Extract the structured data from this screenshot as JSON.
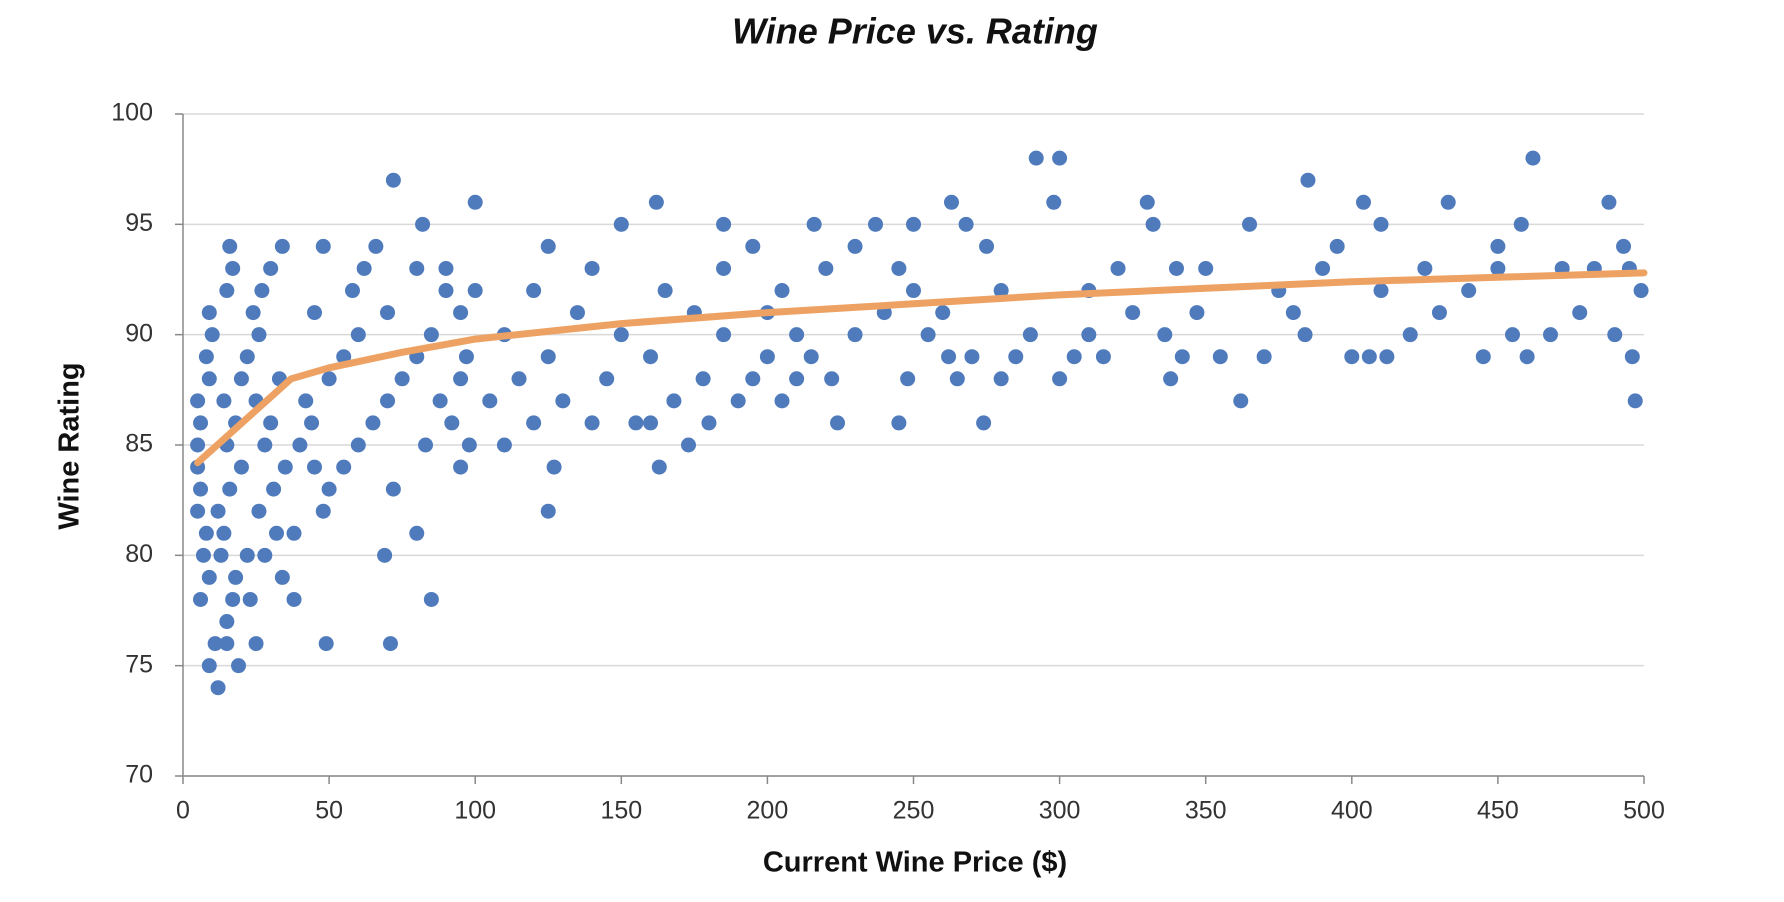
{
  "chart_data": {
    "type": "scatter",
    "title": "Wine Price vs. Rating",
    "x_label": "Current Wine Price ($)",
    "y_label": "Wine Rating",
    "xlim": [
      0,
      500
    ],
    "ylim": [
      70,
      100
    ],
    "xticks": [
      0,
      50,
      100,
      150,
      200,
      250,
      300,
      350,
      400,
      450,
      500
    ],
    "yticks": [
      70,
      75,
      80,
      85,
      90,
      95,
      100
    ],
    "grid": true,
    "series": [
      {
        "type": "scatter",
        "color": "#4f7bbd",
        "x": [
          12,
          9,
          19,
          11,
          15,
          25,
          15,
          6,
          17,
          23,
          9,
          18,
          34,
          7,
          13,
          22,
          28,
          8,
          14,
          32,
          5,
          12,
          26,
          6,
          16,
          31,
          5,
          20,
          35,
          5,
          15,
          28,
          6,
          18,
          30,
          5,
          14,
          25,
          9,
          20,
          33,
          8,
          22,
          10,
          26,
          9,
          24,
          15,
          27,
          17,
          30,
          16,
          34,
          38,
          38,
          49,
          48,
          50,
          45,
          55,
          40,
          60,
          44,
          65,
          42,
          70,
          50,
          75,
          55,
          80,
          60,
          85,
          45,
          70,
          58,
          90,
          62,
          80,
          48,
          66,
          72,
          71,
          69,
          72,
          80,
          85,
          83,
          95,
          98,
          92,
          88,
          95,
          97,
          95,
          100,
          90,
          82,
          100,
          125,
          127,
          110,
          120,
          105,
          130,
          140,
          115,
          145,
          125,
          160,
          110,
          150,
          135,
          175,
          120,
          165,
          140,
          185,
          125,
          150,
          162,
          163,
          173,
          155,
          160,
          168,
          180,
          178,
          190,
          195,
          200,
          205,
          210,
          215,
          222,
          224,
          185,
          210,
          230,
          200,
          240,
          205,
          250,
          220,
          245,
          195,
          230,
          185,
          216,
          237,
          245,
          248,
          250,
          255,
          262,
          265,
          270,
          274,
          280,
          285,
          290,
          263,
          268,
          275,
          292,
          300,
          298,
          300,
          305,
          310,
          315,
          320,
          325,
          330,
          332,
          336,
          338,
          342,
          347,
          350,
          355,
          362,
          365,
          370,
          380,
          384,
          385,
          390,
          395,
          400,
          404,
          406,
          410,
          412,
          420,
          425,
          430,
          433,
          440,
          445,
          450,
          455,
          458,
          460,
          462,
          468,
          472,
          478,
          483,
          488,
          490,
          493,
          496,
          497,
          499,
          260,
          280,
          310,
          340,
          375,
          410,
          450,
          495
        ],
        "values": [
          74,
          75,
          75,
          76,
          76,
          76,
          77,
          78,
          78,
          78,
          79,
          79,
          79,
          80,
          80,
          80,
          80,
          81,
          81,
          81,
          82,
          82,
          82,
          83,
          83,
          83,
          84,
          84,
          84,
          85,
          85,
          85,
          86,
          86,
          86,
          87,
          87,
          87,
          88,
          88,
          88,
          89,
          89,
          90,
          90,
          91,
          91,
          92,
          92,
          93,
          93,
          94,
          94,
          78,
          81,
          76,
          82,
          83,
          84,
          84,
          85,
          85,
          86,
          86,
          87,
          87,
          88,
          88,
          89,
          89,
          90,
          90,
          91,
          91,
          92,
          92,
          93,
          93,
          94,
          94,
          97,
          76,
          80,
          83,
          81,
          78,
          85,
          84,
          85,
          86,
          87,
          88,
          89,
          91,
          92,
          93,
          95,
          96,
          82,
          84,
          85,
          86,
          87,
          87,
          86,
          88,
          88,
          89,
          89,
          90,
          90,
          91,
          91,
          92,
          92,
          93,
          93,
          94,
          95,
          96,
          84,
          85,
          86,
          86,
          87,
          86,
          88,
          87,
          88,
          89,
          87,
          88,
          89,
          88,
          86,
          90,
          90,
          90,
          91,
          91,
          92,
          92,
          93,
          93,
          94,
          94,
          95,
          95,
          95,
          86,
          88,
          95,
          90,
          89,
          88,
          89,
          86,
          88,
          89,
          90,
          96,
          95,
          94,
          98,
          98,
          96,
          88,
          89,
          90,
          89,
          93,
          91,
          96,
          95,
          90,
          88,
          89,
          91,
          93,
          89,
          87,
          95,
          89,
          91,
          90,
          97,
          93,
          94,
          89,
          96,
          89,
          95,
          89,
          90,
          93,
          91,
          96,
          92,
          89,
          94,
          90,
          95,
          89,
          98,
          90,
          93,
          91,
          93,
          96,
          90,
          94,
          89,
          87,
          92,
          91,
          92,
          92,
          93,
          92,
          92,
          93,
          93
        ]
      },
      {
        "type": "line",
        "color": "#eda263",
        "x": [
          5,
          37,
          50,
          75,
          100,
          150,
          200,
          250,
          300,
          350,
          400,
          450,
          500
        ],
        "values": [
          84.2,
          88,
          88.5,
          89.2,
          89.8,
          90.5,
          91,
          91.4,
          91.8,
          92.1,
          92.4,
          92.6,
          92.8
        ]
      }
    ]
  }
}
